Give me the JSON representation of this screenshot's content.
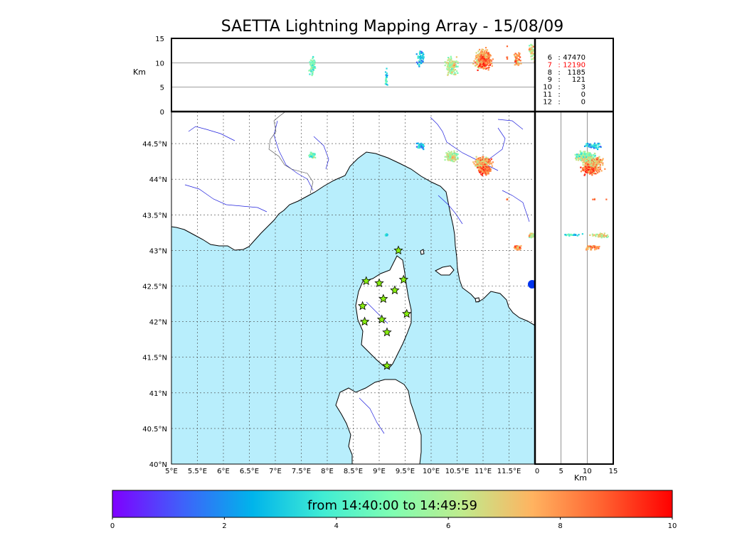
{
  "title": "SAETTA Lightning Mapping Array - 15/08/09",
  "top_panel": {
    "ylabel": "Km",
    "yticks": [
      "15",
      "10",
      "5",
      "0"
    ],
    "yvalues": [
      15,
      10,
      5,
      0
    ],
    "ylim": [
      0,
      15
    ]
  },
  "side_panel": {
    "xlabel": "Km",
    "xticks": [
      "0",
      "5",
      "10",
      "15"
    ],
    "xvalues": [
      0,
      5,
      10,
      15
    ],
    "xlim": [
      0,
      15
    ]
  },
  "map": {
    "lon_ticks": [
      "5°E",
      "5.5°E",
      "6°E",
      "6.5°E",
      "7°E",
      "7.5°E",
      "8°E",
      "8.5°E",
      "9°E",
      "9.5°E",
      "10°E",
      "10.5°E",
      "11°E",
      "11.5°E"
    ],
    "lon_values": [
      5,
      5.5,
      6,
      6.5,
      7,
      7.5,
      8,
      8.5,
      9,
      9.5,
      10,
      10.5,
      11,
      11.5
    ],
    "lat_ticks": [
      "44.5°N",
      "44°N",
      "43.5°N",
      "43°N",
      "42.5°N",
      "42°N",
      "41.5°N",
      "41°N",
      "40.5°N",
      "40°N"
    ],
    "lat_values": [
      44.5,
      44,
      43.5,
      43,
      42.5,
      42,
      41.5,
      41,
      40.5,
      40
    ],
    "lon_range": [
      5,
      12
    ],
    "lat_range": [
      40,
      44.95
    ],
    "sea_color": "#b8eefc",
    "land_color": "#ffffff",
    "river_color": "#2222dd",
    "grid": true
  },
  "stations": {
    "icon": "star-icon",
    "color": "#88ee11",
    "points": [
      {
        "lon": 9.37,
        "lat": 43.0
      },
      {
        "lon": 8.75,
        "lat": 42.57
      },
      {
        "lon": 9.0,
        "lat": 42.54
      },
      {
        "lon": 9.47,
        "lat": 42.59
      },
      {
        "lon": 9.3,
        "lat": 42.44
      },
      {
        "lon": 9.08,
        "lat": 42.32
      },
      {
        "lon": 8.68,
        "lat": 42.22
      },
      {
        "lon": 9.53,
        "lat": 42.11
      },
      {
        "lon": 8.72,
        "lat": 42.0
      },
      {
        "lon": 9.05,
        "lat": 42.03
      },
      {
        "lon": 9.15,
        "lat": 41.85
      },
      {
        "lon": 9.15,
        "lat": 41.38
      }
    ]
  },
  "counts": [
    {
      "label": "6",
      "value": "47470",
      "color": "#000000"
    },
    {
      "label": "7",
      "value": "12190",
      "color": "#ff0000"
    },
    {
      "label": "8",
      "value": "1185",
      "color": "#000000"
    },
    {
      "label": "9",
      "value": "121",
      "color": "#000000"
    },
    {
      "label": "10",
      "value": "3",
      "color": "#000000"
    },
    {
      "label": "11",
      "value": "0",
      "color": "#000000"
    },
    {
      "label": "12",
      "value": "0",
      "color": "#000000"
    }
  ],
  "colorbar": {
    "label": "from 14:40:00 to 14:49:59",
    "ticks": [
      "0",
      "2",
      "4",
      "6",
      "8",
      "10"
    ],
    "tick_values": [
      0,
      2,
      4,
      6,
      8,
      10
    ],
    "range": [
      0,
      10
    ],
    "colors": [
      "#7f00ff",
      "#3f61fa",
      "#00b4eb",
      "#40ecd4",
      "#7ffeb2",
      "#c0eb8d",
      "#ffb360",
      "#ff6230",
      "#ff0000"
    ]
  },
  "chart_data": {
    "type": "scatter",
    "title": "SAETTA Lightning Mapping Array - 15/08/09",
    "xlabel": "",
    "ylabel": "",
    "xlim": [
      5,
      12
    ],
    "ylim": [
      40,
      44.95
    ],
    "colorbar_range": [
      0,
      10
    ],
    "series": [
      {
        "values": [
          {
            "lon": 10.98,
            "lat": 44.24,
            "alt_km": 11.0,
            "n": 260,
            "time": 7.5,
            "spread": 0.12
          },
          {
            "lon": 11.02,
            "lat": 44.14,
            "alt_km": 10.5,
            "n": 140,
            "time": 8.5,
            "spread": 0.1
          },
          {
            "lon": 10.38,
            "lat": 44.33,
            "alt_km": 9.5,
            "n": 150,
            "time": 6.0,
            "spread": 0.1
          },
          {
            "lon": 9.78,
            "lat": 44.48,
            "alt_km": 11.0,
            "n": 60,
            "time": 3.0,
            "spread": 0.06
          },
          {
            "lon": 7.7,
            "lat": 44.35,
            "alt_km": 9.5,
            "n": 70,
            "time": 5.0,
            "spread": 0.05
          },
          {
            "lon": 9.13,
            "lat": 43.23,
            "alt_km": 7.0,
            "n": 25,
            "time": 3.5,
            "spread": 0.02
          },
          {
            "lon": 11.92,
            "lat": 43.22,
            "alt_km": 12.5,
            "n": 50,
            "time": 6.5,
            "spread": 0.05
          },
          {
            "lon": 11.65,
            "lat": 43.05,
            "alt_km": 11.0,
            "n": 50,
            "time": 8.0,
            "spread": 0.05
          },
          {
            "lon": 11.45,
            "lat": 43.73,
            "alt_km": 11.5,
            "n": 4,
            "time": 8.0,
            "spread": 0.01
          }
        ]
      }
    ]
  }
}
